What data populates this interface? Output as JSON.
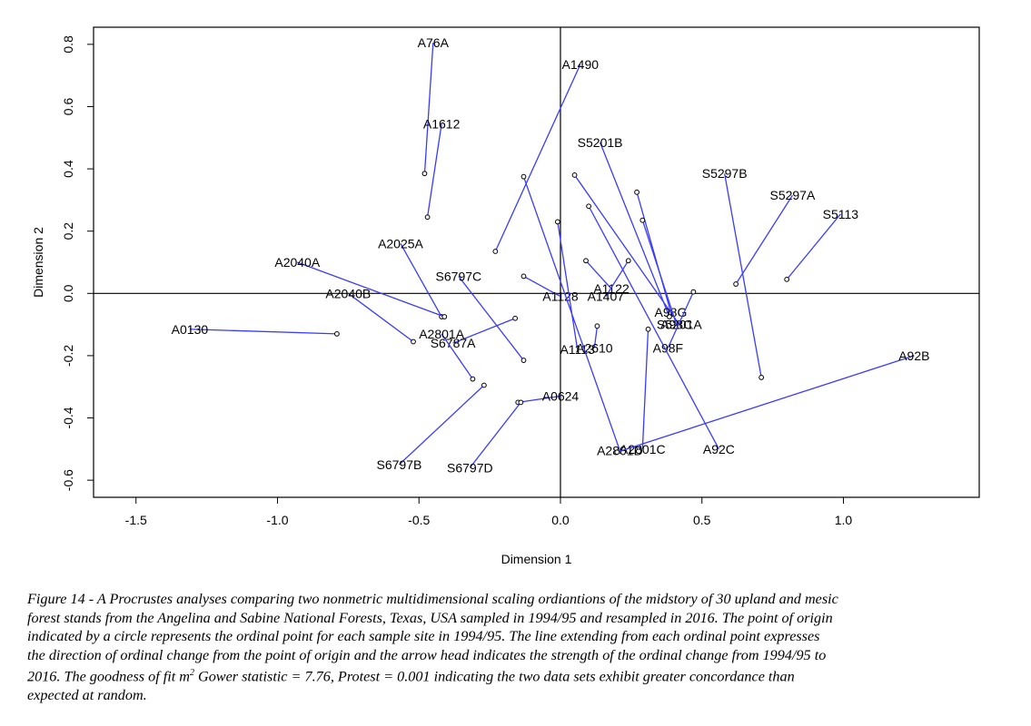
{
  "chart_data": {
    "type": "scatter",
    "xlabel": "Dimension 1",
    "ylabel": "Dimension 2",
    "xlim": [
      -1.65,
      1.48
    ],
    "ylim": [
      -0.655,
      0.855
    ],
    "x_ticks": [
      "-1.5",
      "-1.0",
      "-0.5",
      "0.0",
      "0.5",
      "1.0"
    ],
    "x_tick_values": [
      -1.5,
      -1.0,
      -0.5,
      0.0,
      0.5,
      1.0
    ],
    "y_ticks": [
      "-0.6",
      "-0.4",
      "-0.2",
      "0.0",
      "0.2",
      "0.4",
      "0.6",
      "0.8"
    ],
    "y_tick_values": [
      -0.6,
      -0.4,
      -0.2,
      0.0,
      0.2,
      0.4,
      0.6,
      0.8
    ],
    "reference_lines": {
      "x": 0.0,
      "y": 0.0
    },
    "line_color": "#3a3aff",
    "points": [
      {
        "label": "A76A",
        "origin": [
          -0.48,
          0.385
        ],
        "end": [
          -0.45,
          0.805
        ]
      },
      {
        "label": "A1490",
        "origin": [
          -0.23,
          0.135
        ],
        "end": [
          0.07,
          0.735
        ]
      },
      {
        "label": "A1612",
        "origin": [
          -0.47,
          0.245
        ],
        "end": [
          -0.42,
          0.545
        ]
      },
      {
        "label": "S5201B",
        "origin": [
          0.385,
          -0.075
        ],
        "end": [
          0.14,
          0.485
        ]
      },
      {
        "label": "S5297B",
        "origin": [
          0.71,
          -0.27
        ],
        "end": [
          0.58,
          0.385
        ]
      },
      {
        "label": "S5297A",
        "origin": [
          0.62,
          0.03
        ],
        "end": [
          0.82,
          0.315
        ]
      },
      {
        "label": "S5201A",
        "origin": [
          0.05,
          0.38
        ],
        "end": [
          0.42,
          -0.1
        ]
      },
      {
        "label": "S5113",
        "origin": [
          0.8,
          0.045
        ],
        "end": [
          0.99,
          0.255
        ]
      },
      {
        "label": "A2025A",
        "origin": [
          -0.42,
          -0.075
        ],
        "end": [
          -0.565,
          0.16
        ]
      },
      {
        "label": "A2040A",
        "origin": [
          -0.41,
          -0.075
        ],
        "end": [
          -0.93,
          0.1
        ]
      },
      {
        "label": "A2040B",
        "origin": [
          -0.52,
          -0.155
        ],
        "end": [
          -0.75,
          0.0
        ]
      },
      {
        "label": "S6797C",
        "origin": [
          -0.13,
          -0.215
        ],
        "end": [
          -0.36,
          0.055
        ]
      },
      {
        "label": "A1122",
        "origin": [
          0.09,
          0.105
        ],
        "end": [
          0.18,
          0.015
        ]
      },
      {
        "label": "A1128",
        "origin": [
          -0.13,
          0.055
        ],
        "end": [
          0.0,
          -0.01
        ]
      },
      {
        "label": "A1407",
        "origin": [
          0.24,
          0.105
        ],
        "end": [
          0.16,
          -0.01
        ]
      },
      {
        "label": "A98G",
        "origin": [
          0.27,
          0.325
        ],
        "end": [
          0.39,
          -0.06
        ]
      },
      {
        "label": "A98C",
        "origin": [
          0.29,
          0.235
        ],
        "end": [
          0.41,
          -0.1
        ]
      },
      {
        "label": "A98F",
        "origin": [
          0.47,
          0.005
        ],
        "end": [
          0.38,
          -0.175
        ]
      },
      {
        "label": "A0130",
        "origin": [
          -0.79,
          -0.13
        ],
        "end": [
          -1.31,
          -0.115
        ]
      },
      {
        "label": "S6787A",
        "origin": [
          -0.16,
          -0.08
        ],
        "end": [
          -0.38,
          -0.16
        ]
      },
      {
        "label": "A2801A",
        "origin": [
          -0.31,
          -0.275
        ],
        "end": [
          -0.42,
          -0.13
        ]
      },
      {
        "label": "A1113",
        "origin": [
          -0.01,
          0.23
        ],
        "end": [
          0.06,
          -0.18
        ]
      },
      {
        "label": "A2610",
        "origin": [
          0.13,
          -0.105
        ],
        "end": [
          0.12,
          -0.175
        ]
      },
      {
        "label": "A0624",
        "origin": [
          -0.15,
          -0.35
        ],
        "end": [
          0.0,
          -0.33
        ]
      },
      {
        "label": "A2801C",
        "origin": [
          0.31,
          -0.115
        ],
        "end": [
          0.29,
          -0.5
        ]
      },
      {
        "label": "A2801D",
        "origin": [
          -0.13,
          0.375
        ],
        "end": [
          0.21,
          -0.505
        ]
      },
      {
        "label": "A92B",
        "origin": [
          0.2,
          -0.51
        ],
        "end": [
          1.25,
          -0.2
        ]
      },
      {
        "label": "A92C",
        "origin": [
          0.1,
          0.28
        ],
        "end": [
          0.56,
          -0.5
        ]
      },
      {
        "label": "S6797B",
        "origin": [
          -0.27,
          -0.295
        ],
        "end": [
          -0.57,
          -0.55
        ]
      },
      {
        "label": "S6797D",
        "origin": [
          -0.14,
          -0.35
        ],
        "end": [
          -0.32,
          -0.56
        ]
      }
    ]
  },
  "caption": {
    "line1": "Figure 14 - A Procrustes analyses comparing two nonmetric multidimensional scaling ordiantions of the midstory of 30 upland and mesic",
    "line2": "forest stands from the Angelina and Sabine National Forests, Texas, USA sampled in 1994/95 and resampled in 2016. The point of origin",
    "line3": "indicated by a circle represents the ordinal point for each sample site in 1994/95. The line extending from each ordinal point expresses",
    "line4": "the direction of ordinal change from the point of origin and the arrow head indicates the strength of the ordinal change from 1994/95 to",
    "line5_before": "2016. The goodness of fit m",
    "line5_sup": "2",
    "line5_after": " Gower statistic = 7.76, Protest = 0.001 indicating the two data sets exhibit greater concordance than",
    "line6": "expected at random."
  }
}
